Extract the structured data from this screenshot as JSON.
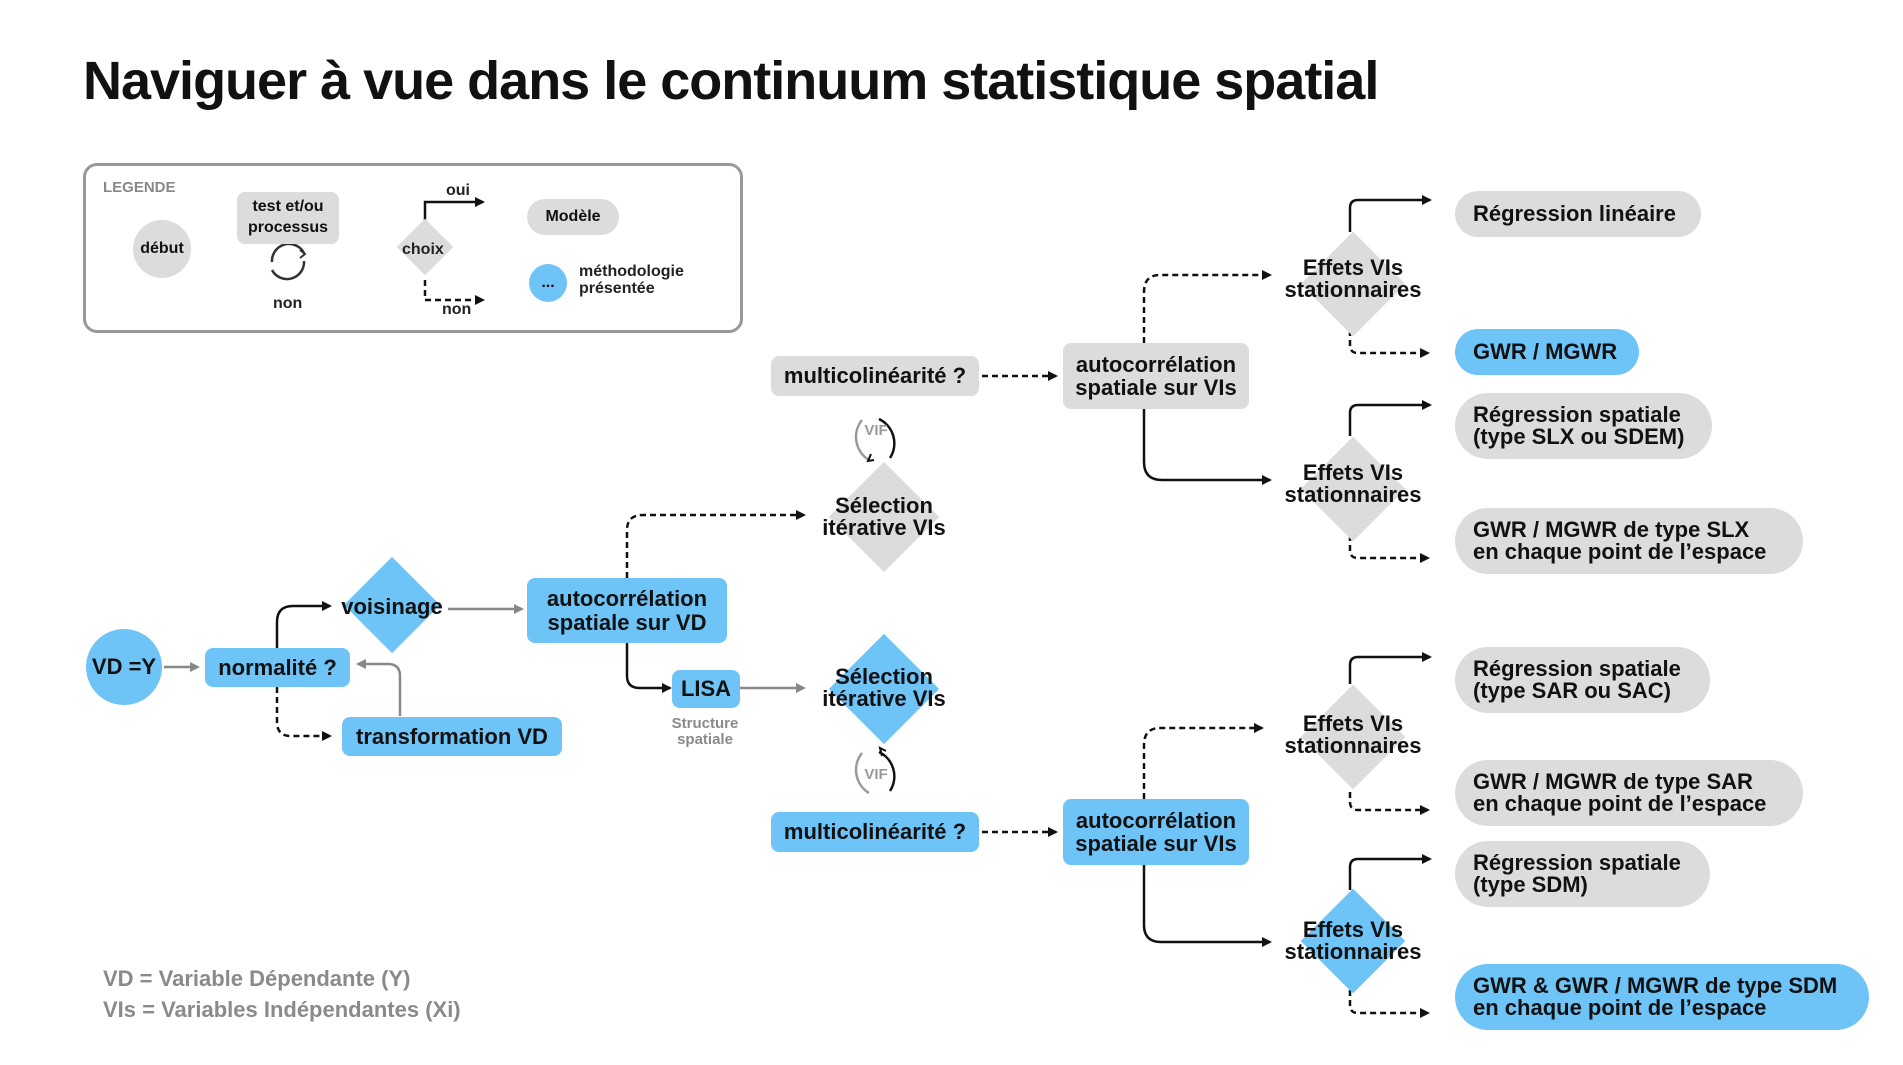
{
  "title": "Naviguer à vue dans le continuum statistique spatial",
  "legend": {
    "heading": "LEGENDE",
    "start": "début",
    "test_line1": "test et/ou",
    "test_line2": "processus",
    "test_no": "non",
    "choice": "choix",
    "choice_yes": "oui",
    "choice_no": "non",
    "model": "Modèle",
    "method_dot": "...",
    "method_line1": "méthodologie",
    "method_line2": "présentée"
  },
  "nodes": {
    "vd": "VD =Y",
    "normalite": "normalité ?",
    "transformation": "transformation VD",
    "voisinage": "voisinage",
    "autocorr_vd_1": "autocorrélation",
    "autocorr_vd_2": "spatiale sur VD",
    "lisa": "LISA",
    "structure_1": "Structure",
    "structure_2": "spatiale",
    "selection_top_1": "Sélection",
    "selection_top_2": "itérative VIs",
    "selection_bot_1": "Sélection",
    "selection_bot_2": "itérative VIs",
    "vif_top": "VIF",
    "vif_bot": "VIF",
    "multico_top": "multicolinéarité ?",
    "multico_bot": "multicolinéarité ?",
    "autocorr_vis_top_1": "autocorrélation",
    "autocorr_vis_top_2": "spatiale sur VIs",
    "autocorr_vis_bot_1": "autocorrélation",
    "autocorr_vis_bot_2": "spatiale sur VIs",
    "effets_1_a": "Effets VIs",
    "effets_1_b": "stationnaires",
    "effets_2_a": "Effets VIs",
    "effets_2_b": "stationnaires",
    "effets_3_a": "Effets VIs",
    "effets_3_b": "stationnaires",
    "effets_4_a": "Effets VIs",
    "effets_4_b": "stationnaires"
  },
  "results": {
    "r1": [
      "Régression linéaire"
    ],
    "r2": [
      "GWR / MGWR"
    ],
    "r3": [
      "Régression spatiale",
      "(type SLX ou SDEM)"
    ],
    "r4": [
      "GWR / MGWR de type SLX",
      "en chaque point de l’espace"
    ],
    "r5": [
      "Régression spatiale",
      "(type SAR ou SAC)"
    ],
    "r6": [
      "GWR / MGWR de type SAR",
      "en chaque point de l’espace"
    ],
    "r7": [
      "Régression spatiale",
      "(type SDM)"
    ],
    "r8": [
      "GWR & GWR / MGWR de type SDM",
      "en chaque point de l’espace"
    ]
  },
  "notes": {
    "vd": "VD = Variable Dépendante (Y)",
    "vis": "VIs = Variables Indépendantes (Xi)"
  },
  "colors": {
    "blue": "#6ec3f7",
    "grey": "#dcdcdc",
    "muted": "#8a8a8a"
  }
}
